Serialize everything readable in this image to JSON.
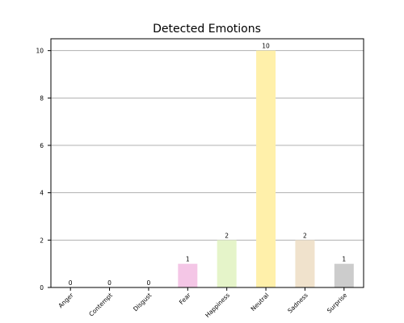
{
  "chart_data": {
    "type": "bar",
    "title": "Detected Emotions",
    "xlabel": "",
    "ylabel": "",
    "categories": [
      "Anger",
      "Contempt",
      "Disgust",
      "Fear",
      "Happiness",
      "Neutral",
      "Sadness",
      "Surprise"
    ],
    "values": [
      0,
      0,
      0,
      1,
      2,
      10,
      2,
      1
    ],
    "data_labels": [
      "0",
      "0",
      "0",
      "1",
      "2",
      "10",
      "2",
      "1"
    ],
    "colors": [
      "#f5c0c0",
      "#c9c9f0",
      "#f0d6b0",
      "#f4c6e6",
      "#e5f4c9",
      "#fff0aa",
      "#f0e2cc",
      "#cccccc"
    ],
    "ylim": [
      0,
      10.5
    ],
    "yticks": [
      0,
      2,
      4,
      6,
      8,
      10
    ],
    "ytick_labels": [
      "0",
      "2",
      "4",
      "6",
      "8",
      "10"
    ],
    "grid": "horizontal",
    "legend": "none"
  }
}
